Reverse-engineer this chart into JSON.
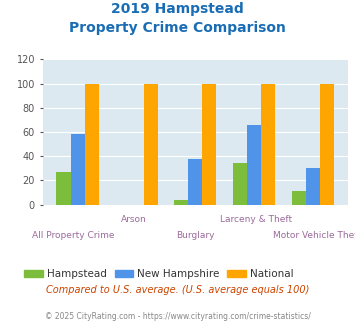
{
  "title_line1": "2019 Hampstead",
  "title_line2": "Property Crime Comparison",
  "categories": [
    "All Property Crime",
    "Arson",
    "Burglary",
    "Larceny & Theft",
    "Motor Vehicle Theft"
  ],
  "hampstead": [
    27,
    0,
    4,
    34,
    11
  ],
  "new_hampshire": [
    58,
    0,
    38,
    66,
    30
  ],
  "national": [
    100,
    100,
    100,
    100,
    100
  ],
  "colors": {
    "hampstead": "#7cbd3c",
    "new_hampshire": "#4f94e8",
    "national": "#ffa500"
  },
  "ylim": [
    0,
    120
  ],
  "yticks": [
    0,
    20,
    40,
    60,
    80,
    100,
    120
  ],
  "title_color": "#1a6db5",
  "xlabel_color": "#9b6b9b",
  "legend_labels": [
    "Hampstead",
    "New Hampshire",
    "National"
  ],
  "footnote1": "Compared to U.S. average. (U.S. average equals 100)",
  "footnote2": "© 2025 CityRating.com - https://www.cityrating.com/crime-statistics/",
  "bg_color": "#dce9f0",
  "fig_bg": "#ffffff",
  "line1_labels": [
    "",
    "Arson",
    "",
    "Larceny & Theft",
    ""
  ],
  "line2_labels": [
    "All Property Crime",
    "",
    "Burglary",
    "",
    "Motor Vehicle Theft"
  ]
}
